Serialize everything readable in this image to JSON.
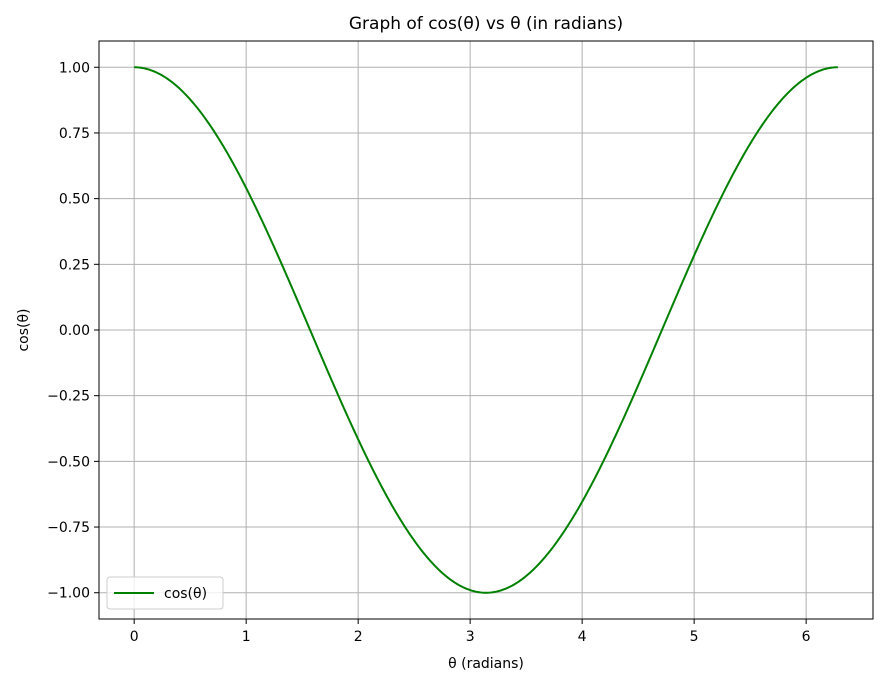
{
  "chart_data": {
    "type": "line",
    "title": "Graph of cos(θ) vs θ (in radians)",
    "xlabel": "θ (radians)",
    "ylabel": "cos(θ)",
    "xlim": [
      -0.314,
      6.597
    ],
    "ylim": [
      -1.1,
      1.1
    ],
    "xticks": [
      0,
      1,
      2,
      3,
      4,
      5,
      6
    ],
    "xtick_labels": [
      "0",
      "1",
      "2",
      "3",
      "4",
      "5",
      "6"
    ],
    "yticks": [
      1.0,
      0.75,
      0.5,
      0.25,
      0.0,
      -0.25,
      -0.5,
      -0.75,
      -1.0
    ],
    "ytick_labels": [
      "1.00",
      "0.75",
      "0.50",
      "0.25",
      "0.00",
      "−0.25",
      "−0.50",
      "−0.75",
      "−1.00"
    ],
    "grid": true,
    "legend_position": "lower left",
    "series": [
      {
        "name": "cos(θ)",
        "color": "#008000",
        "function": "cos",
        "x_range": [
          0,
          6.2832
        ],
        "sampled_points": {
          "x": [
            0,
            0.5,
            1,
            1.5,
            2,
            2.5,
            3,
            3.1416,
            3.5,
            4,
            4.5,
            5,
            5.5,
            6,
            6.2832
          ],
          "y": [
            1.0,
            0.878,
            0.54,
            0.071,
            -0.416,
            -0.801,
            -0.99,
            -1.0,
            -0.936,
            -0.654,
            -0.211,
            0.284,
            0.709,
            0.96,
            1.0
          ]
        }
      }
    ]
  }
}
